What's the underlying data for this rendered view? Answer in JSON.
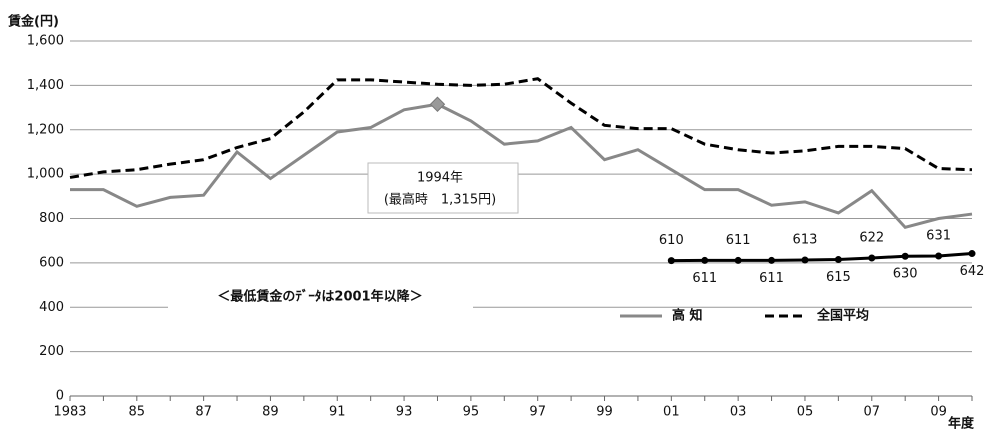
{
  "chart_data": {
    "type": "line",
    "y_label": "賃金(円)",
    "x_label": "年度",
    "categories": [
      "1983",
      null,
      "85",
      null,
      "87",
      null,
      "89",
      null,
      "91",
      null,
      "93",
      null,
      "95",
      null,
      "97",
      null,
      "99",
      null,
      "01",
      null,
      "03",
      null,
      "05",
      null,
      "07",
      null,
      "09",
      null
    ],
    "series": [
      {
        "name": "高 知",
        "color": "#888888",
        "dash": false,
        "markers": false,
        "values": [
          930,
          930,
          855,
          895,
          905,
          1100,
          980,
          1085,
          1190,
          1210,
          1290,
          1315,
          1240,
          1135,
          1150,
          1210,
          1065,
          1110,
          1020,
          930,
          930,
          860,
          875,
          825,
          925,
          760,
          800,
          820
        ]
      },
      {
        "name": "全国平均",
        "color": "#000000",
        "dash": true,
        "markers": false,
        "values": [
          985,
          1010,
          1020,
          1045,
          1065,
          1120,
          1160,
          1280,
          1425,
          1425,
          1415,
          1405,
          1400,
          1405,
          1430,
          1320,
          1220,
          1205,
          1205,
          1135,
          1110,
          1095,
          1105,
          1125,
          1125,
          1115,
          1025,
          1020
        ]
      },
      {
        "color": "#000000",
        "dash": false,
        "markers": true,
        "data_labels": true,
        "values": [
          null,
          null,
          null,
          null,
          null,
          null,
          null,
          null,
          null,
          null,
          null,
          null,
          null,
          null,
          null,
          null,
          null,
          null,
          610,
          611,
          611,
          611,
          613,
          615,
          622,
          630,
          631,
          642
        ]
      }
    ],
    "ylim": [
      0,
      1600
    ],
    "yticks": [
      0,
      200,
      400,
      600,
      800,
      {
        "value": 1000,
        "label": "1,000"
      },
      {
        "value": 1200,
        "label": "1,200"
      },
      {
        "value": 1400,
        "label": "1,400"
      },
      {
        "value": 1600,
        "label": "1,600"
      }
    ],
    "grid": true,
    "annotations": [
      {
        "text": "1994年"
      },
      {
        "text": "(最高時　1,315円)"
      },
      {
        "text": "＜最低賃金のﾃﾞｰﾀは2001年以降＞"
      }
    ]
  }
}
